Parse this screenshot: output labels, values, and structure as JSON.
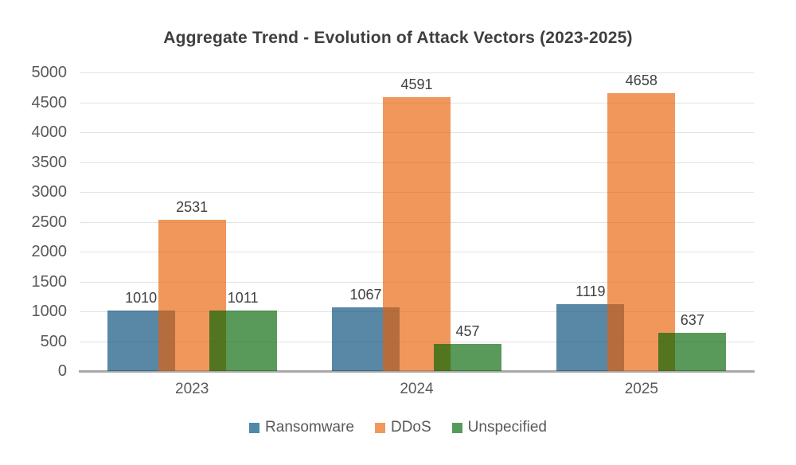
{
  "chart_data": {
    "type": "bar",
    "title": "Aggregate Trend - Evolution of Attack Vectors (2023-2025)",
    "categories": [
      "2023",
      "2024",
      "2025"
    ],
    "series": [
      {
        "name": "Ransomware",
        "legend_color": "#4f89a8",
        "fill": "rgba(0,71,119,0.65)",
        "values": [
          1010,
          1067,
          1119
        ]
      },
      {
        "name": "DDoS",
        "legend_color": "#f0995f",
        "fill": "rgba(232,96,5,0.65)",
        "values": [
          2531,
          4591,
          4658
        ]
      },
      {
        "name": "Unspecified",
        "legend_color": "#569b5c",
        "fill": "rgba(0,99,0,0.65)",
        "values": [
          1011,
          457,
          637
        ]
      }
    ],
    "data_labels": [
      [
        "1010",
        "1067",
        "1119"
      ],
      [
        "2531",
        "4591",
        "4658"
      ],
      [
        "1011",
        "457",
        "637"
      ]
    ],
    "ylim": [
      0,
      5000
    ],
    "y_ticks": [
      0,
      500,
      1000,
      1500,
      2000,
      2500,
      3000,
      3500,
      4000,
      4500,
      5000
    ],
    "grid": true,
    "bars_overlap": true,
    "legend_position": "bottom",
    "colors": {
      "grid_line": "#e3e3e3",
      "axis_line": "#a8a8a8",
      "title_text": "#3f3f3f",
      "tick_text": "#595959",
      "data_label_text": "#404040",
      "background": "#ffffff"
    }
  }
}
